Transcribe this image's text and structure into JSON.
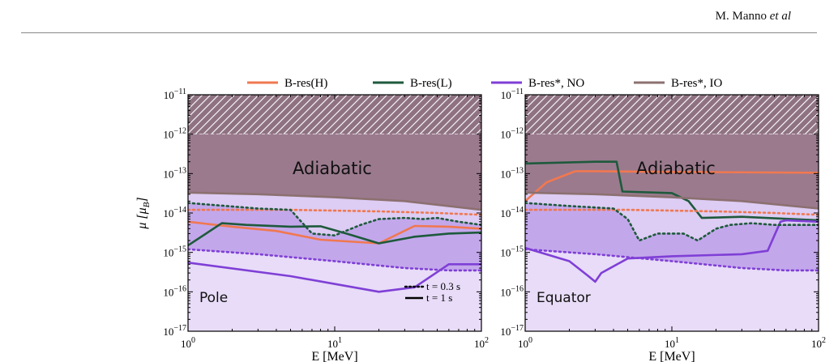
{
  "header": {
    "author": "M. Manno",
    "author_suffix": "et al"
  },
  "legend": {
    "placement": "top",
    "entries": [
      {
        "label": "B-res(H)",
        "color": "#f07850"
      },
      {
        "label": "B-res(L)",
        "color": "#1e5a3c"
      },
      {
        "label": "B-res*, NO",
        "color": "#7f3fd6"
      },
      {
        "label": "B-res*, IO",
        "color": "#8c7070"
      }
    ],
    "style_legend": [
      {
        "label": "t = 0.3 s",
        "dash": "dotted"
      },
      {
        "label": "t = 1 s",
        "dash": "solid"
      }
    ]
  },
  "colors": {
    "hatch_bg": "#8f7282",
    "adiabatic_fill": "#9b7a8e",
    "light_fill": "#d9c7f2",
    "mid_fill": "#c0a3ea"
  },
  "chart_data": [
    {
      "type": "line",
      "panel_label": "Pole",
      "region_label": "Adiabatic",
      "xlabel": "E [MeV]",
      "ylabel": "μ [μ_B]",
      "xscale": "log",
      "yscale": "log",
      "xlim": [
        1,
        100
      ],
      "ylim": [
        1e-17,
        1e-11
      ],
      "xticks": [
        "10^0",
        "10^1",
        "10^2"
      ],
      "yticks": [
        "10^-17",
        "10^-16",
        "10^-15",
        "10^-14",
        "10^-13",
        "10^-12",
        "10^-11"
      ],
      "hatched_above": 1e-12,
      "series": [
        {
          "name": "B-res(H)",
          "dash": "solid",
          "x": [
            1,
            2,
            4,
            8,
            20,
            35,
            60,
            100
          ],
          "y": [
            6e-15,
            4.5e-15,
            3.5e-15,
            2.1e-15,
            1.7e-15,
            4.7e-15,
            4.5e-15,
            4e-15
          ]
        },
        {
          "name": "B-res(L)",
          "dash": "solid",
          "x": [
            1,
            1.7,
            2.5,
            5,
            8,
            12,
            20,
            35,
            60,
            100
          ],
          "y": [
            1.5e-15,
            5.5e-15,
            5e-15,
            4.5e-15,
            4.6e-15,
            3e-15,
            1.7e-15,
            2.5e-15,
            3e-15,
            3.2e-15
          ]
        },
        {
          "name": "B-res*, NO",
          "dash": "solid",
          "x": [
            1,
            5,
            20,
            35,
            60,
            100
          ],
          "y": [
            5.5e-16,
            2.5e-16,
            1e-16,
            1.3e-16,
            5e-16,
            5e-16
          ]
        },
        {
          "name": "B-res*, IO",
          "dash": "solid",
          "x": [
            1,
            3,
            10,
            30,
            100
          ],
          "y": [
            3.3e-14,
            3e-14,
            2.5e-14,
            2e-14,
            1.2e-14
          ]
        },
        {
          "name": "B-res(H)",
          "dash": "dotted",
          "x": [
            1,
            5,
            20,
            50,
            100
          ],
          "y": [
            1.2e-14,
            1.2e-14,
            1.1e-14,
            1e-14,
            9e-15
          ]
        },
        {
          "name": "B-res(L)",
          "dash": "dotted",
          "x": [
            1,
            3,
            5,
            7,
            10,
            15,
            20,
            30,
            40,
            50,
            70,
            100
          ],
          "y": [
            1.8e-14,
            1.3e-14,
            1.2e-14,
            3e-15,
            2.7e-15,
            5e-15,
            7e-15,
            7.5e-15,
            7e-15,
            7.5e-15,
            6e-15,
            5e-15
          ]
        },
        {
          "name": "B-res*, NO",
          "dash": "dotted",
          "x": [
            1,
            3,
            10,
            30,
            60,
            100
          ],
          "y": [
            1.2e-15,
            9e-16,
            6e-16,
            4e-16,
            3.5e-16,
            3.5e-16
          ]
        }
      ]
    },
    {
      "type": "line",
      "panel_label": "Equator",
      "region_label": "Adiabatic",
      "xlabel": "E [MeV]",
      "ylabel": "",
      "xscale": "log",
      "yscale": "log",
      "xlim": [
        1,
        100
      ],
      "ylim": [
        1e-17,
        1e-11
      ],
      "xticks": [
        "10^0",
        "10^1",
        "10^2"
      ],
      "yticks": [
        "10^-17",
        "10^-16",
        "10^-15",
        "10^-14",
        "10^-13",
        "10^-12",
        "10^-11"
      ],
      "hatched_above": 1e-12,
      "series": [
        {
          "name": "B-res(H)",
          "dash": "solid",
          "x": [
            1,
            1.4,
            2.2,
            3,
            10,
            100
          ],
          "y": [
            2e-14,
            6e-14,
            1.15e-13,
            1.15e-13,
            1.1e-13,
            1.05e-13
          ]
        },
        {
          "name": "B-res(L)",
          "dash": "solid",
          "x": [
            1,
            3,
            4.2,
            4.6,
            10,
            13,
            16,
            30,
            100
          ],
          "y": [
            1.8e-13,
            2e-13,
            2e-13,
            3.5e-14,
            3.2e-14,
            2e-14,
            7.5e-15,
            8e-15,
            6.5e-15
          ]
        },
        {
          "name": "B-res*, NO",
          "dash": "solid",
          "x": [
            1,
            2,
            2.7,
            3,
            3.3,
            5,
            10,
            30,
            45,
            55,
            60,
            100
          ],
          "y": [
            1.3e-15,
            6e-16,
            2.5e-16,
            1.8e-16,
            3e-16,
            7e-16,
            8e-16,
            9e-16,
            1.1e-15,
            6e-15,
            6.5e-15,
            6e-15
          ]
        },
        {
          "name": "B-res*, IO",
          "dash": "solid",
          "x": [
            1,
            3,
            10,
            30,
            100
          ],
          "y": [
            3.3e-14,
            3e-14,
            2.5e-14,
            2e-14,
            1.3e-14
          ]
        },
        {
          "name": "B-res(H)",
          "dash": "dotted",
          "x": [
            1,
            5,
            20,
            50,
            100
          ],
          "y": [
            1.2e-14,
            1.2e-14,
            1.1e-14,
            1e-14,
            9e-15
          ]
        },
        {
          "name": "B-res(L)",
          "dash": "dotted",
          "x": [
            1,
            2,
            4,
            5,
            6,
            8,
            12,
            15,
            20,
            25,
            35,
            50,
            100
          ],
          "y": [
            1.8e-14,
            1.5e-14,
            1.3e-14,
            7e-15,
            2e-15,
            3e-15,
            3e-15,
            2e-15,
            4e-15,
            5e-15,
            5.5e-15,
            5e-15,
            5e-15
          ]
        },
        {
          "name": "B-res*, NO",
          "dash": "dotted",
          "x": [
            1,
            3,
            10,
            30,
            60,
            100
          ],
          "y": [
            1.2e-15,
            9e-16,
            6e-16,
            4e-16,
            3.5e-16,
            3.5e-16
          ]
        }
      ]
    }
  ]
}
